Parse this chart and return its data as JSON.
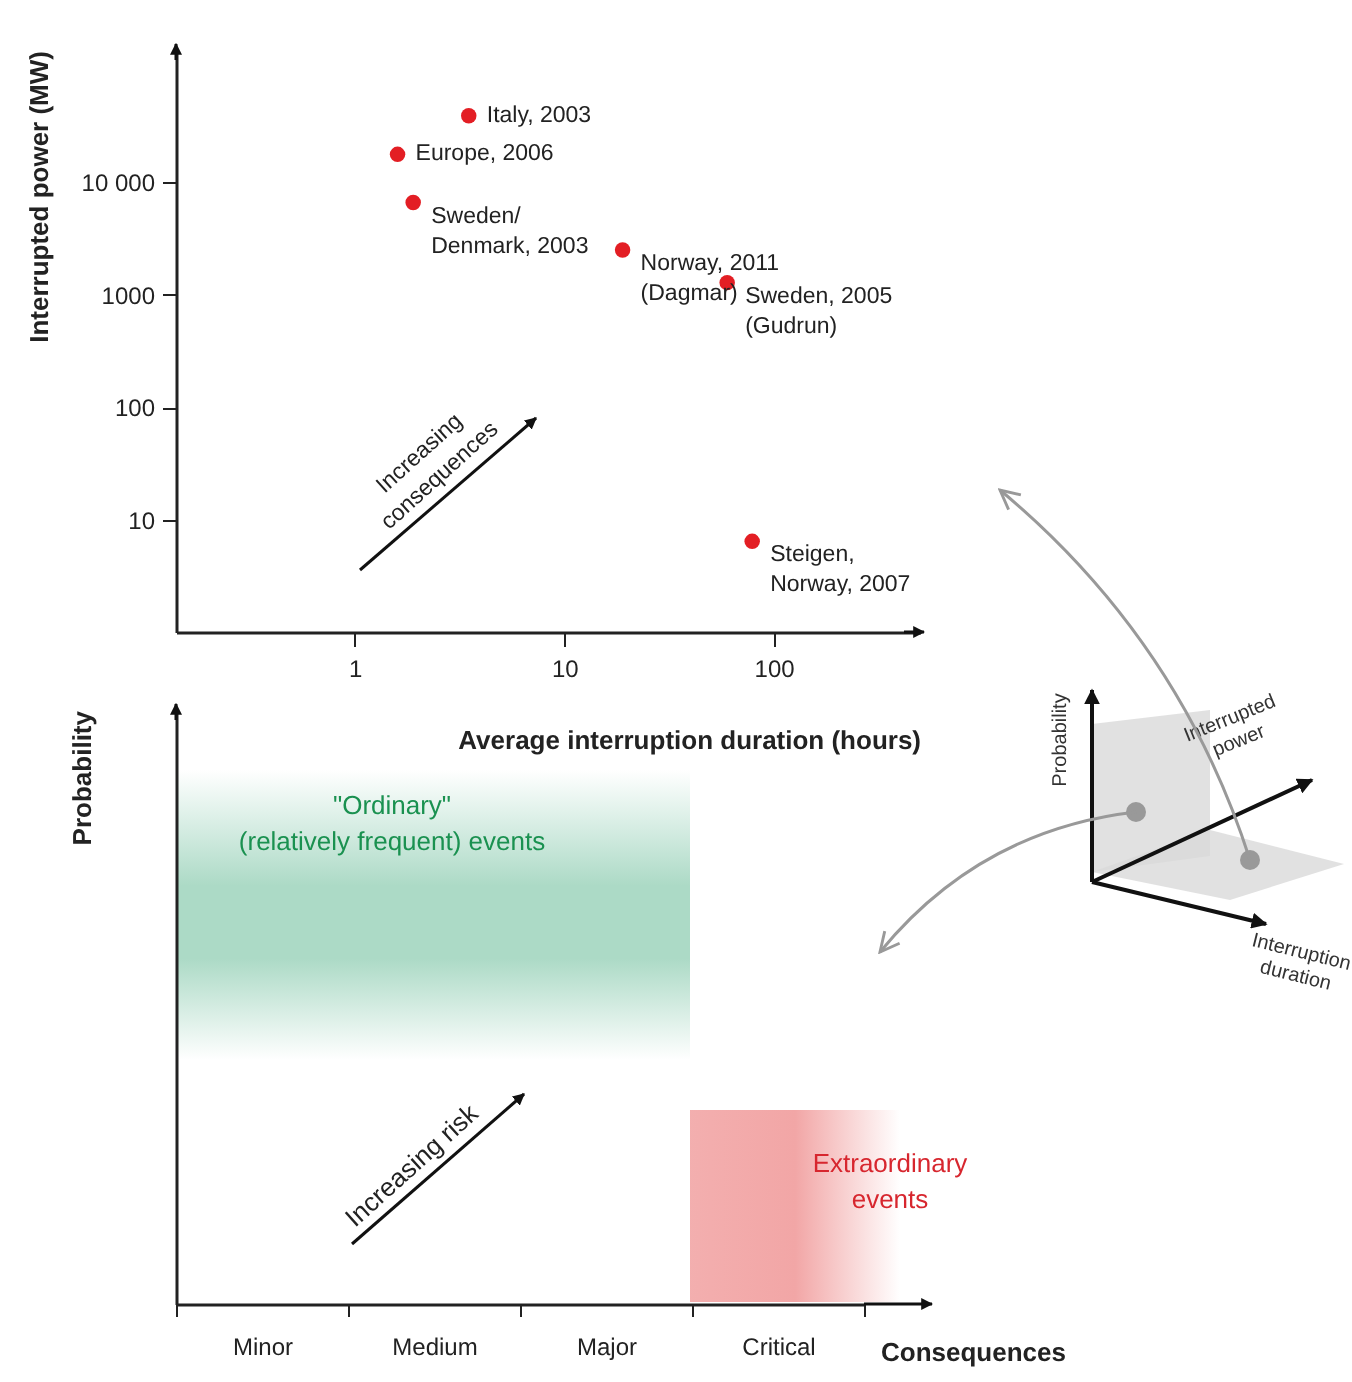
{
  "chart_data": [
    {
      "type": "scatter",
      "xlabel": "Average interruption duration (hours)",
      "ylabel": "Interrupted power (MW)",
      "x": [
        3.5,
        1.6,
        1.9,
        19,
        60,
        79
      ],
      "values": [
        39000,
        17700,
        6600,
        2500,
        1280,
        6.4
      ],
      "color": "#e31e24",
      "marker": "circle",
      "log": "xy",
      "grid": false,
      "xlim": [
        0.14,
        500
      ],
      "ylim": [
        1,
        150000
      ],
      "xticks": [
        1,
        10,
        100
      ],
      "yticks": [
        10,
        100,
        1000,
        {
          "value": 10000,
          "label": "10 000"
        }
      ],
      "annotations": [
        {
          "text": "Italy, 2003",
          "x": 3.5,
          "y": 39000
        },
        {
          "text": "Europe, 2006",
          "x": 1.6,
          "y": 17700
        },
        {
          "text": "Sweden/\nDenmark, 2003",
          "x": 1.9,
          "y": 6600
        },
        {
          "text": "Norway, 2011\n(Dagmar)",
          "x": 19,
          "y": 2500
        },
        {
          "text": "Sweden, 2005\n(Gudrun)",
          "x": 60,
          "y": 1280
        },
        {
          "text": "Steigen,\nNorway, 2007",
          "x": 79,
          "y": 6.4
        },
        "Increasing\nconsequences"
      ]
    },
    {
      "type": "other",
      "xlabel": "Consequences",
      "ylabel": "Probability",
      "categories": [
        "Minor",
        "Medium",
        "Major",
        "Critical"
      ],
      "annotations": [
        "\"Ordinary\"\n(relatively frequent) events",
        "Extraordinary\nevents",
        "Increasing risk"
      ]
    },
    {
      "type": "other",
      "annotations": [
        "Probability",
        "Interrupted\npower",
        "Interruption\nduration"
      ]
    }
  ]
}
